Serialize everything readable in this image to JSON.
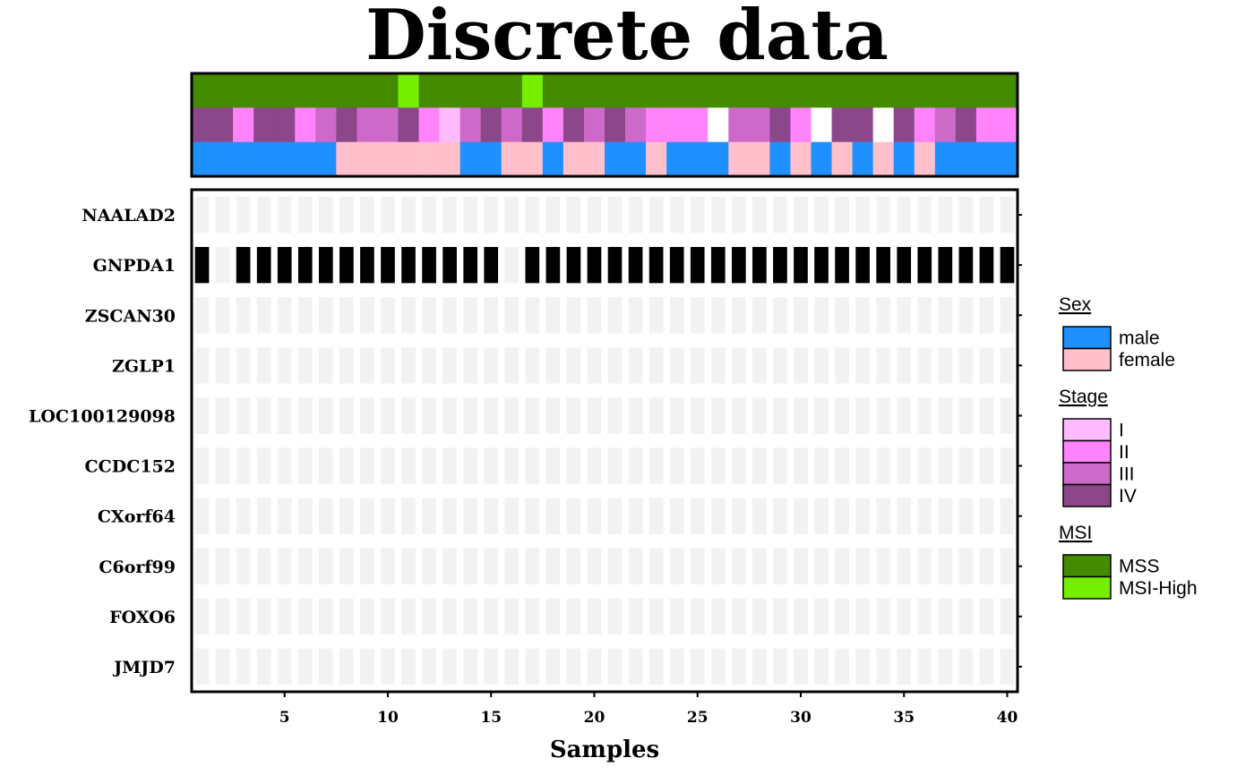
{
  "chart_data": {
    "type": "heatmap",
    "title": "Discrete data",
    "xlabel": "Samples",
    "ylabel": "",
    "x_ticks": [
      5,
      10,
      15,
      20,
      25,
      30,
      35,
      40
    ],
    "n_samples": 40,
    "genes": [
      "NAALAD2",
      "GNPDA1",
      "ZSCAN30",
      "ZGLP1",
      "LOC100129098",
      "CCDC152",
      "CXorf64",
      "C6orf99",
      "FOXO6",
      "JMJD7"
    ],
    "alterations": {
      "GNPDA1": [
        1,
        0,
        1,
        1,
        1,
        1,
        1,
        1,
        1,
        1,
        1,
        1,
        1,
        1,
        1,
        0,
        1,
        1,
        1,
        1,
        1,
        1,
        1,
        1,
        1,
        1,
        1,
        1,
        1,
        1,
        1,
        1,
        1,
        1,
        1,
        1,
        1,
        1,
        1,
        1
      ]
    },
    "alteration_color": "#000000",
    "background_color": "#f2f2f2",
    "annotations": [
      {
        "name": "MSI",
        "values": [
          "MSS",
          "MSS",
          "MSS",
          "MSS",
          "MSS",
          "MSS",
          "MSS",
          "MSS",
          "MSS",
          "MSS",
          "MSI-High",
          "MSS",
          "MSS",
          "MSS",
          "MSS",
          "MSS",
          "MSI-High",
          "MSS",
          "MSS",
          "MSS",
          "MSS",
          "MSS",
          "MSS",
          "MSS",
          "MSS",
          "MSS",
          "MSS",
          "MSS",
          "MSS",
          "MSS",
          "MSS",
          "MSS",
          "MSS",
          "MSS",
          "MSS",
          "MSS",
          "MSS",
          "MSS",
          "MSS",
          "MSS"
        ]
      },
      {
        "name": "Stage",
        "values": [
          "IV",
          "IV",
          "II",
          "IV",
          "IV",
          "II",
          "III",
          "IV",
          "III",
          "III",
          "IV",
          "II",
          "I",
          "III",
          "IV",
          "III",
          "IV",
          "II",
          "IV",
          "III",
          "IV",
          "III",
          "II",
          "II",
          "II",
          "NA",
          "III",
          "III",
          "IV",
          "II",
          "NA",
          "IV",
          "IV",
          "NA",
          "IV",
          "II",
          "III",
          "IV",
          "II",
          "II"
        ]
      },
      {
        "name": "Sex",
        "values": [
          "male",
          "male",
          "male",
          "male",
          "male",
          "male",
          "male",
          "female",
          "female",
          "female",
          "female",
          "female",
          "female",
          "male",
          "male",
          "female",
          "female",
          "male",
          "female",
          "female",
          "male",
          "male",
          "female",
          "male",
          "male",
          "male",
          "female",
          "female",
          "male",
          "female",
          "male",
          "female",
          "male",
          "female",
          "male",
          "female",
          "male",
          "male",
          "male",
          "male"
        ]
      }
    ],
    "legend": [
      {
        "title": "Sex",
        "items": [
          {
            "label": "male",
            "color": "#1e90ff"
          },
          {
            "label": "female",
            "color": "#ffc0cb"
          }
        ]
      },
      {
        "title": "Stage",
        "items": [
          {
            "label": "I",
            "color": "#ffbbff"
          },
          {
            "label": "II",
            "color": "#ff83fa"
          },
          {
            "label": "III",
            "color": "#cd69c9"
          },
          {
            "label": "IV",
            "color": "#8b4789"
          }
        ]
      },
      {
        "title": "MSI",
        "items": [
          {
            "label": "MSS",
            "color": "#458b00"
          },
          {
            "label": "MSI-High",
            "color": "#76ee00"
          }
        ]
      }
    ],
    "legend_position": "right",
    "na_color": "#ffffff"
  }
}
